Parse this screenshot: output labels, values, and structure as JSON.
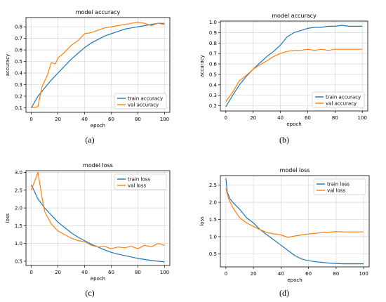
{
  "colors": {
    "train": "#1f77b4",
    "val": "#ff7f0e",
    "grid": "#d8d8d8",
    "axis": "#000000"
  },
  "captions": [
    "(a)",
    "(b)",
    "(c)",
    "(d)"
  ],
  "chart_data": [
    {
      "id": "a",
      "type": "line",
      "title": "model accuracy",
      "xlabel": "epoch",
      "ylabel": "accuracy",
      "xlim": [
        -4,
        104
      ],
      "ylim": [
        0.06,
        0.88
      ],
      "xticks": [
        0,
        20,
        40,
        60,
        80,
        100
      ],
      "yticks": [
        0.1,
        0.2,
        0.3,
        0.4,
        0.5,
        0.6,
        0.7,
        0.8
      ],
      "yfmt": 1,
      "grid": true,
      "legend": "lower-right",
      "series": [
        {
          "name": "train accuracy",
          "color": "#1f77b4",
          "x": [
            0,
            5,
            10,
            15,
            20,
            25,
            30,
            35,
            40,
            45,
            50,
            55,
            60,
            65,
            70,
            75,
            80,
            85,
            90,
            95,
            100
          ],
          "y": [
            0.1,
            0.2,
            0.27,
            0.34,
            0.4,
            0.46,
            0.52,
            0.57,
            0.62,
            0.66,
            0.69,
            0.72,
            0.74,
            0.76,
            0.78,
            0.79,
            0.8,
            0.81,
            0.82,
            0.83,
            0.83
          ]
        },
        {
          "name": "val accuracy",
          "color": "#ff7f0e",
          "x": [
            0,
            5,
            8,
            12,
            15,
            18,
            20,
            25,
            30,
            35,
            40,
            45,
            50,
            55,
            60,
            65,
            70,
            75,
            80,
            85,
            90,
            95,
            100
          ],
          "y": [
            0.1,
            0.11,
            0.28,
            0.38,
            0.49,
            0.48,
            0.53,
            0.58,
            0.64,
            0.68,
            0.74,
            0.75,
            0.77,
            0.79,
            0.8,
            0.81,
            0.82,
            0.83,
            0.84,
            0.83,
            0.81,
            0.83,
            0.82
          ]
        }
      ]
    },
    {
      "id": "b",
      "type": "line",
      "title": "model accuracy",
      "xlabel": "epoch",
      "ylabel": "accuracy",
      "xlim": [
        -4,
        104
      ],
      "ylim": [
        0.15,
        1.01
      ],
      "xticks": [
        0,
        20,
        40,
        60,
        80,
        100
      ],
      "yticks": [
        0.2,
        0.3,
        0.4,
        0.5,
        0.6,
        0.7,
        0.8,
        0.9,
        1.0
      ],
      "yfmt": 1,
      "grid": true,
      "legend": "lower-right",
      "series": [
        {
          "name": "train accuracy",
          "color": "#1f77b4",
          "x": [
            0,
            5,
            10,
            15,
            20,
            25,
            30,
            35,
            40,
            45,
            50,
            55,
            60,
            65,
            70,
            75,
            80,
            85,
            90,
            95,
            100
          ],
          "y": [
            0.19,
            0.3,
            0.4,
            0.48,
            0.55,
            0.61,
            0.67,
            0.72,
            0.78,
            0.86,
            0.9,
            0.92,
            0.94,
            0.95,
            0.95,
            0.96,
            0.96,
            0.97,
            0.96,
            0.96,
            0.96
          ]
        },
        {
          "name": "val accuracy",
          "color": "#ff7f0e",
          "x": [
            0,
            5,
            10,
            15,
            20,
            25,
            30,
            35,
            40,
            45,
            50,
            55,
            60,
            65,
            70,
            75,
            80,
            85,
            90,
            95,
            100
          ],
          "y": [
            0.24,
            0.33,
            0.44,
            0.49,
            0.55,
            0.59,
            0.63,
            0.67,
            0.7,
            0.72,
            0.73,
            0.73,
            0.74,
            0.73,
            0.74,
            0.73,
            0.74,
            0.74,
            0.74,
            0.74,
            0.74
          ]
        }
      ]
    },
    {
      "id": "c",
      "type": "line",
      "title": "model loss",
      "xlabel": "epoch",
      "ylabel": "loss",
      "xlim": [
        -4,
        104
      ],
      "ylim": [
        0.38,
        3.05
      ],
      "xticks": [
        0,
        20,
        40,
        60,
        80,
        100
      ],
      "yticks": [
        0.5,
        1.0,
        1.5,
        2.0,
        2.5,
        3.0
      ],
      "yfmt": 1,
      "grid": true,
      "legend": "upper-right",
      "series": [
        {
          "name": "train loss",
          "color": "#1f77b4",
          "x": [
            0,
            5,
            10,
            15,
            20,
            25,
            30,
            35,
            40,
            45,
            50,
            55,
            60,
            65,
            70,
            75,
            80,
            85,
            90,
            95,
            100
          ],
          "y": [
            2.65,
            2.25,
            2.0,
            1.8,
            1.6,
            1.45,
            1.3,
            1.18,
            1.08,
            0.98,
            0.9,
            0.82,
            0.75,
            0.7,
            0.66,
            0.62,
            0.58,
            0.55,
            0.52,
            0.5,
            0.48
          ]
        },
        {
          "name": "val loss",
          "color": "#ff7f0e",
          "x": [
            0,
            3,
            5,
            8,
            10,
            15,
            20,
            25,
            30,
            35,
            40,
            45,
            50,
            55,
            60,
            65,
            70,
            75,
            80,
            85,
            90,
            95,
            100
          ],
          "y": [
            2.5,
            2.8,
            3.0,
            2.3,
            1.9,
            1.55,
            1.35,
            1.25,
            1.15,
            1.08,
            1.05,
            0.95,
            0.9,
            0.92,
            0.85,
            0.9,
            0.88,
            0.92,
            0.85,
            0.95,
            0.9,
            1.0,
            0.95
          ]
        }
      ]
    },
    {
      "id": "d",
      "type": "line",
      "title": "model loss",
      "xlabel": "epoch",
      "ylabel": "loss",
      "xlim": [
        -4,
        104
      ],
      "ylim": [
        0.12,
        2.78
      ],
      "xticks": [
        0,
        20,
        40,
        60,
        80,
        100
      ],
      "yticks": [
        0.5,
        1.0,
        1.5,
        2.0,
        2.5
      ],
      "yfmt": 1,
      "grid": true,
      "legend": "upper-right",
      "series": [
        {
          "name": "train loss",
          "color": "#1f77b4",
          "x": [
            0,
            1,
            3,
            5,
            10,
            15,
            20,
            25,
            30,
            35,
            40,
            45,
            50,
            55,
            60,
            65,
            70,
            75,
            80,
            85,
            90,
            95,
            100
          ],
          "y": [
            2.7,
            2.3,
            2.1,
            2.0,
            1.8,
            1.55,
            1.4,
            1.2,
            1.05,
            0.9,
            0.75,
            0.6,
            0.45,
            0.35,
            0.3,
            0.27,
            0.25,
            0.23,
            0.22,
            0.21,
            0.21,
            0.21,
            0.21
          ]
        },
        {
          "name": "val loss",
          "color": "#ff7f0e",
          "x": [
            0,
            2,
            5,
            10,
            15,
            20,
            25,
            30,
            35,
            40,
            45,
            50,
            55,
            60,
            65,
            70,
            75,
            80,
            85,
            90,
            95,
            100
          ],
          "y": [
            2.4,
            2.1,
            1.85,
            1.55,
            1.4,
            1.3,
            1.2,
            1.12,
            1.08,
            1.05,
            0.98,
            1.02,
            1.05,
            1.08,
            1.1,
            1.12,
            1.13,
            1.15,
            1.14,
            1.14,
            1.14,
            1.14
          ]
        }
      ]
    }
  ]
}
